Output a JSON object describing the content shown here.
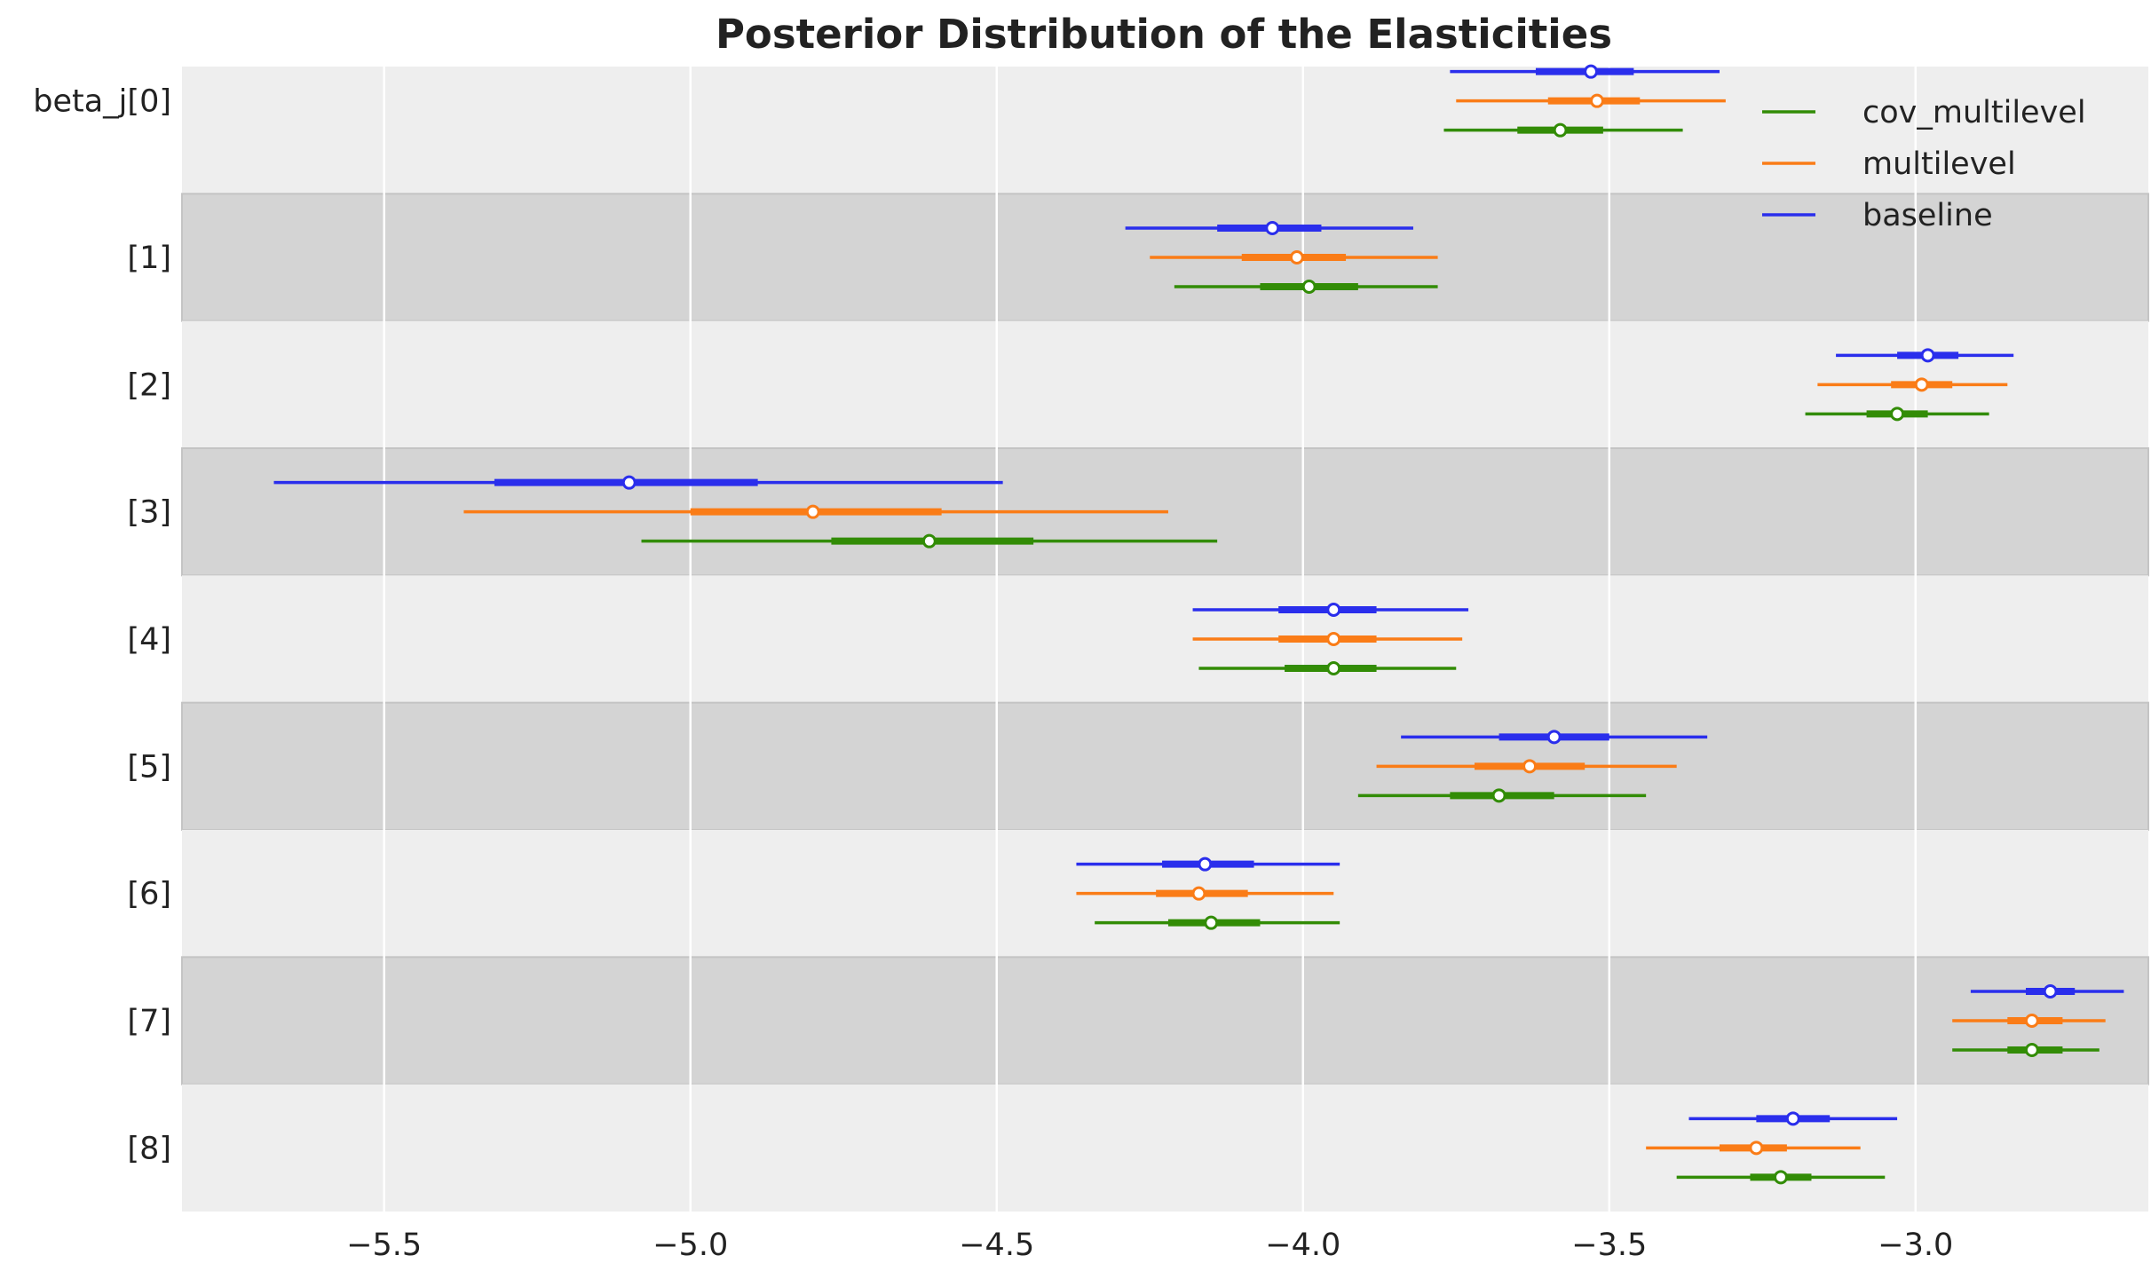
{
  "chart_data": {
    "type": "forest",
    "title": "Posterior Distribution of the Elasticities",
    "xlabel": "",
    "ylabel": "",
    "xlim": [
      -5.83,
      -2.62
    ],
    "xticks": [
      -5.5,
      -5.0,
      -4.5,
      -4.0,
      -3.5,
      -3.0
    ],
    "xtick_labels": [
      "−5.5",
      "−5.0",
      "−4.5",
      "−4.0",
      "−3.5",
      "−3.0"
    ],
    "row_labels": [
      "beta_j[0]",
      "[1]",
      "[2]",
      "[3]",
      "[4]",
      "[5]",
      "[6]",
      "[7]",
      "[8]"
    ],
    "legend": {
      "position": "top-right",
      "entries": [
        "cov_multilevel",
        "multilevel",
        "baseline"
      ]
    },
    "colors": {
      "baseline": "#2a2eec",
      "multilevel": "#fa7c17",
      "cov_multilevel": "#328c06",
      "band_light": "#eeeeee",
      "band_dark": "#d4d4d4",
      "grid": "#ffffff"
    },
    "series": [
      {
        "name": "baseline",
        "color": "#2a2eec",
        "points": [
          {
            "median": -3.53,
            "iqr": [
              -3.62,
              -3.46
            ],
            "hdi": [
              -3.76,
              -3.32
            ]
          },
          {
            "median": -4.05,
            "iqr": [
              -4.14,
              -3.97
            ],
            "hdi": [
              -4.29,
              -3.82
            ]
          },
          {
            "median": -2.98,
            "iqr": [
              -3.03,
              -2.93
            ],
            "hdi": [
              -3.13,
              -2.84
            ]
          },
          {
            "median": -5.1,
            "iqr": [
              -5.32,
              -4.89
            ],
            "hdi": [
              -5.68,
              -4.49
            ]
          },
          {
            "median": -3.95,
            "iqr": [
              -4.04,
              -3.88
            ],
            "hdi": [
              -4.18,
              -3.73
            ]
          },
          {
            "median": -3.59,
            "iqr": [
              -3.68,
              -3.5
            ],
            "hdi": [
              -3.84,
              -3.34
            ]
          },
          {
            "median": -4.16,
            "iqr": [
              -4.23,
              -4.08
            ],
            "hdi": [
              -4.37,
              -3.94
            ]
          },
          {
            "median": -2.78,
            "iqr": [
              -2.82,
              -2.74
            ],
            "hdi": [
              -2.91,
              -2.66
            ]
          },
          {
            "median": -3.2,
            "iqr": [
              -3.26,
              -3.14
            ],
            "hdi": [
              -3.37,
              -3.03
            ]
          }
        ]
      },
      {
        "name": "multilevel",
        "color": "#fa7c17",
        "points": [
          {
            "median": -3.52,
            "iqr": [
              -3.6,
              -3.45
            ],
            "hdi": [
              -3.75,
              -3.31
            ]
          },
          {
            "median": -4.01,
            "iqr": [
              -4.1,
              -3.93
            ],
            "hdi": [
              -4.25,
              -3.78
            ]
          },
          {
            "median": -2.99,
            "iqr": [
              -3.04,
              -2.94
            ],
            "hdi": [
              -3.16,
              -2.85
            ]
          },
          {
            "median": -4.8,
            "iqr": [
              -5.0,
              -4.59
            ],
            "hdi": [
              -5.37,
              -4.22
            ]
          },
          {
            "median": -3.95,
            "iqr": [
              -4.04,
              -3.88
            ],
            "hdi": [
              -4.18,
              -3.74
            ]
          },
          {
            "median": -3.63,
            "iqr": [
              -3.72,
              -3.54
            ],
            "hdi": [
              -3.88,
              -3.39
            ]
          },
          {
            "median": -4.17,
            "iqr": [
              -4.24,
              -4.09
            ],
            "hdi": [
              -4.37,
              -3.95
            ]
          },
          {
            "median": -2.81,
            "iqr": [
              -2.85,
              -2.76
            ],
            "hdi": [
              -2.94,
              -2.69
            ]
          },
          {
            "median": -3.26,
            "iqr": [
              -3.32,
              -3.21
            ],
            "hdi": [
              -3.44,
              -3.09
            ]
          }
        ]
      },
      {
        "name": "cov_multilevel",
        "color": "#328c06",
        "points": [
          {
            "median": -3.58,
            "iqr": [
              -3.65,
              -3.51
            ],
            "hdi": [
              -3.77,
              -3.38
            ]
          },
          {
            "median": -3.99,
            "iqr": [
              -4.07,
              -3.91
            ],
            "hdi": [
              -4.21,
              -3.78
            ]
          },
          {
            "median": -3.03,
            "iqr": [
              -3.08,
              -2.98
            ],
            "hdi": [
              -3.18,
              -2.88
            ]
          },
          {
            "median": -4.61,
            "iqr": [
              -4.77,
              -4.44
            ],
            "hdi": [
              -5.08,
              -4.14
            ]
          },
          {
            "median": -3.95,
            "iqr": [
              -4.03,
              -3.88
            ],
            "hdi": [
              -4.17,
              -3.75
            ]
          },
          {
            "median": -3.68,
            "iqr": [
              -3.76,
              -3.59
            ],
            "hdi": [
              -3.91,
              -3.44
            ]
          },
          {
            "median": -4.15,
            "iqr": [
              -4.22,
              -4.07
            ],
            "hdi": [
              -4.34,
              -3.94
            ]
          },
          {
            "median": -2.81,
            "iqr": [
              -2.85,
              -2.76
            ],
            "hdi": [
              -2.94,
              -2.7
            ]
          },
          {
            "median": -3.22,
            "iqr": [
              -3.27,
              -3.17
            ],
            "hdi": [
              -3.39,
              -3.05
            ]
          }
        ]
      }
    ]
  }
}
